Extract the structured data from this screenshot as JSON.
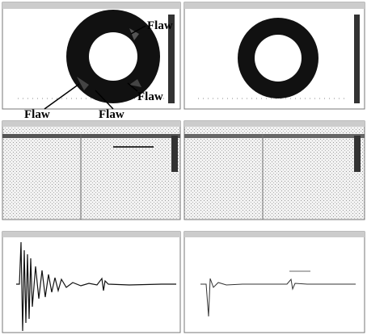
{
  "annotations": {
    "flaw_labels": [
      "Flaw",
      "Flaw",
      "Flaw",
      "Flaw"
    ]
  }
}
